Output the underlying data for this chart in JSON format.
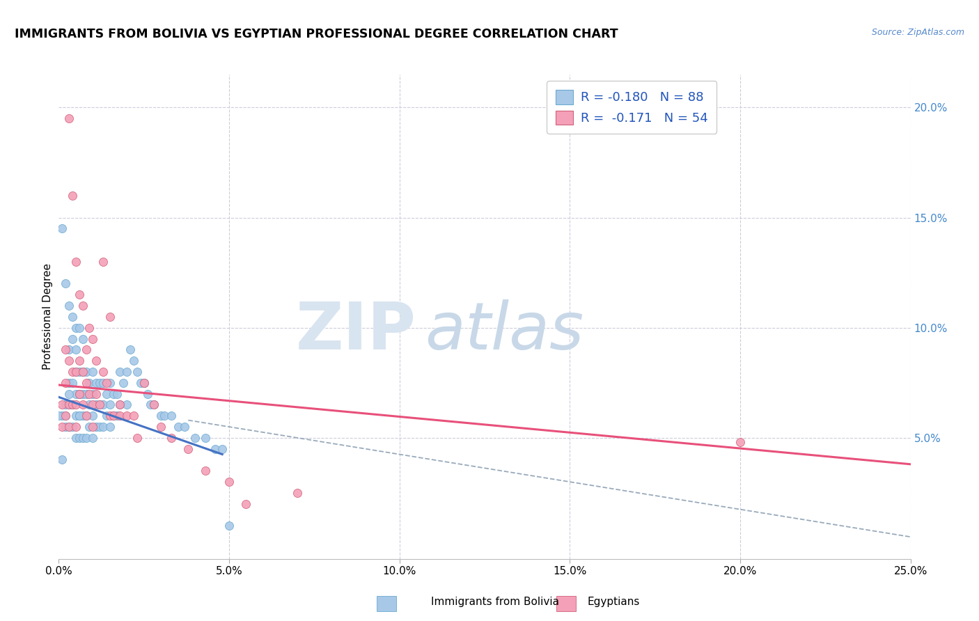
{
  "title": "IMMIGRANTS FROM BOLIVIA VS EGYPTIAN PROFESSIONAL DEGREE CORRELATION CHART",
  "source_text": "Source: ZipAtlas.com",
  "ylabel": "Professional Degree",
  "xlim": [
    0.0,
    0.25
  ],
  "ylim": [
    -0.005,
    0.215
  ],
  "xtick_labels": [
    "0.0%",
    "5.0%",
    "10.0%",
    "15.0%",
    "20.0%",
    "25.0%"
  ],
  "xtick_values": [
    0.0,
    0.05,
    0.1,
    0.15,
    0.2,
    0.25
  ],
  "ytick_labels_right": [
    "5.0%",
    "10.0%",
    "15.0%",
    "20.0%"
  ],
  "ytick_values_right": [
    0.05,
    0.1,
    0.15,
    0.2
  ],
  "color_bolivia": "#a8c8e8",
  "color_egypt": "#f4a0b8",
  "color_bolivia_line": "#4472c4",
  "color_egypt_line": "#e8507a",
  "color_bolivia_edge": "#6aaad0",
  "color_egypt_edge": "#d0607a",
  "grid_color": "#ccccdd",
  "right_axis_color": "#4488cc",
  "watermark_color_zip": "#d8e4f0",
  "watermark_color_atlas": "#c8d8e8",
  "bolivia_scatter_x": [
    0.001,
    0.002,
    0.002,
    0.002,
    0.003,
    0.003,
    0.003,
    0.003,
    0.004,
    0.004,
    0.004,
    0.004,
    0.005,
    0.005,
    0.005,
    0.005,
    0.005,
    0.006,
    0.006,
    0.006,
    0.006,
    0.007,
    0.007,
    0.007,
    0.007,
    0.008,
    0.008,
    0.008,
    0.008,
    0.009,
    0.009,
    0.009,
    0.01,
    0.01,
    0.01,
    0.01,
    0.011,
    0.011,
    0.011,
    0.012,
    0.012,
    0.012,
    0.013,
    0.013,
    0.013,
    0.014,
    0.014,
    0.015,
    0.015,
    0.015,
    0.016,
    0.016,
    0.017,
    0.017,
    0.018,
    0.018,
    0.019,
    0.02,
    0.02,
    0.021,
    0.022,
    0.023,
    0.024,
    0.025,
    0.026,
    0.027,
    0.028,
    0.03,
    0.031,
    0.033,
    0.035,
    0.037,
    0.04,
    0.043,
    0.046,
    0.048,
    0.05,
    0.001,
    0.001,
    0.0,
    0.002,
    0.003,
    0.003,
    0.004,
    0.005,
    0.006,
    0.006,
    0.007
  ],
  "bolivia_scatter_y": [
    0.06,
    0.065,
    0.06,
    0.055,
    0.09,
    0.075,
    0.065,
    0.055,
    0.095,
    0.075,
    0.065,
    0.055,
    0.09,
    0.08,
    0.07,
    0.06,
    0.05,
    0.08,
    0.07,
    0.06,
    0.05,
    0.08,
    0.07,
    0.06,
    0.05,
    0.08,
    0.07,
    0.06,
    0.05,
    0.075,
    0.065,
    0.055,
    0.08,
    0.07,
    0.06,
    0.05,
    0.075,
    0.065,
    0.055,
    0.075,
    0.065,
    0.055,
    0.075,
    0.065,
    0.055,
    0.07,
    0.06,
    0.075,
    0.065,
    0.055,
    0.07,
    0.06,
    0.07,
    0.06,
    0.08,
    0.065,
    0.075,
    0.08,
    0.065,
    0.09,
    0.085,
    0.08,
    0.075,
    0.075,
    0.07,
    0.065,
    0.065,
    0.06,
    0.06,
    0.06,
    0.055,
    0.055,
    0.05,
    0.05,
    0.045,
    0.045,
    0.01,
    0.145,
    0.04,
    0.06,
    0.12,
    0.11,
    0.07,
    0.105,
    0.1,
    0.1,
    0.06,
    0.095
  ],
  "egypt_scatter_x": [
    0.001,
    0.001,
    0.002,
    0.002,
    0.002,
    0.003,
    0.003,
    0.003,
    0.004,
    0.004,
    0.005,
    0.005,
    0.005,
    0.006,
    0.006,
    0.007,
    0.007,
    0.008,
    0.008,
    0.009,
    0.01,
    0.01,
    0.011,
    0.012,
    0.013,
    0.014,
    0.015,
    0.016,
    0.018,
    0.02,
    0.022,
    0.025,
    0.028,
    0.03,
    0.033,
    0.038,
    0.043,
    0.05,
    0.055,
    0.07,
    0.003,
    0.004,
    0.005,
    0.006,
    0.007,
    0.008,
    0.009,
    0.01,
    0.011,
    0.013,
    0.015,
    0.018,
    0.023,
    0.2
  ],
  "egypt_scatter_y": [
    0.065,
    0.055,
    0.09,
    0.075,
    0.06,
    0.085,
    0.065,
    0.055,
    0.08,
    0.065,
    0.08,
    0.065,
    0.055,
    0.085,
    0.07,
    0.08,
    0.065,
    0.075,
    0.06,
    0.07,
    0.065,
    0.055,
    0.07,
    0.065,
    0.08,
    0.075,
    0.06,
    0.06,
    0.06,
    0.06,
    0.06,
    0.075,
    0.065,
    0.055,
    0.05,
    0.045,
    0.035,
    0.03,
    0.02,
    0.025,
    0.195,
    0.16,
    0.13,
    0.115,
    0.11,
    0.09,
    0.1,
    0.095,
    0.085,
    0.13,
    0.105,
    0.065,
    0.05,
    0.048
  ],
  "bolivia_line_x": [
    0.0,
    0.048
  ],
  "bolivia_line_y": [
    0.0685,
    0.0425
  ],
  "egypt_line_x": [
    0.0,
    0.25
  ],
  "egypt_line_y": [
    0.074,
    0.038
  ],
  "dashed_line_x": [
    0.038,
    0.25
  ],
  "dashed_line_y": [
    0.058,
    0.005
  ],
  "legend_r1": "R = -0.180",
  "legend_n1": "N = 88",
  "legend_r2": "R =  -0.171",
  "legend_n2": "N = 54"
}
